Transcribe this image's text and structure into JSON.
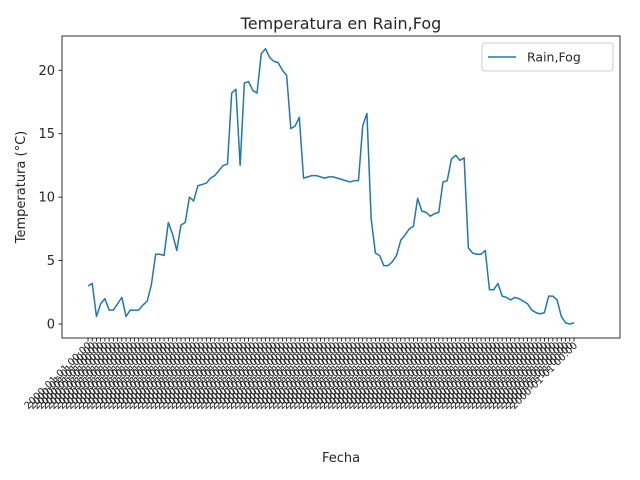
{
  "chart_data": {
    "type": "line",
    "title": "Temperatura en Rain,Fog",
    "xlabel": "Fecha",
    "ylabel": "Temperatura (°C)",
    "ylim": [
      -1.1,
      22.7
    ],
    "yticks": [
      0,
      5,
      10,
      15,
      20
    ],
    "grid": false,
    "legend_position": "top-right",
    "colors": {
      "line": "#1f77b4",
      "axis": "#000000",
      "text": "#262626"
    },
    "x_tick_text": "2000-01-01 00:00",
    "series": [
      {
        "name": "Rain,Fog",
        "values": [
          3.0,
          3.2,
          0.6,
          1.6,
          2.0,
          1.1,
          1.1,
          1.6,
          2.1,
          0.6,
          1.1,
          1.1,
          1.1,
          1.5,
          1.8,
          3.1,
          5.5,
          5.5,
          5.4,
          8.0,
          7.1,
          5.8,
          7.8,
          8.0,
          10.0,
          9.7,
          10.9,
          11.0,
          11.1,
          11.5,
          11.7,
          12.1,
          12.5,
          12.6,
          18.2,
          18.5,
          12.5,
          19.0,
          19.1,
          18.4,
          18.2,
          21.3,
          21.7,
          21.0,
          20.7,
          20.6,
          20.0,
          19.6,
          15.4,
          15.6,
          16.3,
          11.5,
          11.6,
          11.7,
          11.7,
          11.6,
          11.5,
          11.6,
          11.6,
          11.5,
          11.4,
          11.3,
          11.2,
          11.3,
          11.3,
          15.6,
          16.6,
          8.3,
          5.6,
          5.4,
          4.6,
          4.6,
          4.9,
          5.4,
          6.6,
          7.0,
          7.5,
          7.7,
          9.9,
          8.9,
          8.8,
          8.5,
          8.7,
          8.8,
          11.2,
          11.3,
          13.0,
          13.3,
          12.9,
          13.1,
          6.0,
          5.6,
          5.5,
          5.5,
          5.8,
          2.7,
          2.7,
          3.2,
          2.2,
          2.1,
          1.9,
          2.1,
          2.0,
          1.8,
          1.6,
          1.1,
          0.9,
          0.8,
          0.9,
          2.2,
          2.2,
          1.9,
          0.6,
          0.1,
          0.0,
          0.1
        ]
      }
    ]
  }
}
